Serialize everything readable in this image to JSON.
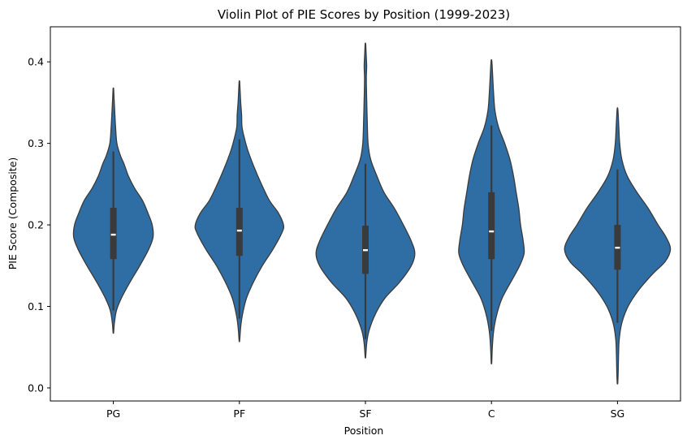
{
  "chart_data": {
    "type": "violin",
    "title": "Violin Plot of PIE Scores by Position (1999-2023)",
    "xlabel": "Position",
    "ylabel": "PIE Score (Composite)",
    "ylim": [
      -0.016,
      0.443
    ],
    "yticks": [
      0.0,
      0.1,
      0.2,
      0.3,
      0.4
    ],
    "ytick_labels": [
      "0.0",
      "0.1",
      "0.2",
      "0.3",
      "0.4"
    ],
    "categories": [
      "PG",
      "PF",
      "SF",
      "C",
      "SG"
    ],
    "color": "#2f6ea4",
    "series": [
      {
        "category": "PG",
        "min": 0.068,
        "max": 0.367,
        "q1": 0.158,
        "median": 0.188,
        "q3": 0.221,
        "whisker_low": 0.095,
        "whisker_high": 0.29,
        "density": [
          [
            0.068,
            0.3
          ],
          [
            0.08,
            1.2
          ],
          [
            0.095,
            3.5
          ],
          [
            0.11,
            9
          ],
          [
            0.13,
            19
          ],
          [
            0.15,
            30
          ],
          [
            0.17,
            40
          ],
          [
            0.185,
            45
          ],
          [
            0.2,
            44
          ],
          [
            0.215,
            39
          ],
          [
            0.23,
            33
          ],
          [
            0.245,
            24
          ],
          [
            0.26,
            17
          ],
          [
            0.275,
            12
          ],
          [
            0.285,
            8
          ],
          [
            0.3,
            4
          ],
          [
            0.32,
            2.5
          ],
          [
            0.34,
            1.5
          ],
          [
            0.355,
            0.8
          ],
          [
            0.367,
            0.3
          ]
        ]
      },
      {
        "category": "PF",
        "min": 0.058,
        "max": 0.376,
        "q1": 0.162,
        "median": 0.193,
        "q3": 0.221,
        "whisker_low": 0.085,
        "whisker_high": 0.305,
        "density": [
          [
            0.058,
            0.3
          ],
          [
            0.075,
            1.5
          ],
          [
            0.09,
            3.5
          ],
          [
            0.11,
            8
          ],
          [
            0.13,
            16
          ],
          [
            0.15,
            26
          ],
          [
            0.17,
            38
          ],
          [
            0.19,
            48
          ],
          [
            0.2,
            50
          ],
          [
            0.215,
            44
          ],
          [
            0.23,
            34
          ],
          [
            0.25,
            25
          ],
          [
            0.27,
            17
          ],
          [
            0.29,
            10
          ],
          [
            0.305,
            6
          ],
          [
            0.32,
            3
          ],
          [
            0.335,
            2.5
          ],
          [
            0.35,
            1.5
          ],
          [
            0.365,
            0.8
          ],
          [
            0.376,
            0.3
          ]
        ]
      },
      {
        "category": "SF",
        "min": 0.038,
        "max": 0.422,
        "q1": 0.14,
        "median": 0.169,
        "q3": 0.199,
        "whisker_low": 0.06,
        "whisker_high": 0.275,
        "density": [
          [
            0.038,
            0.3
          ],
          [
            0.055,
            1.5
          ],
          [
            0.07,
            4
          ],
          [
            0.09,
            11
          ],
          [
            0.11,
            22
          ],
          [
            0.13,
            39
          ],
          [
            0.15,
            52
          ],
          [
            0.165,
            56
          ],
          [
            0.18,
            52
          ],
          [
            0.2,
            43
          ],
          [
            0.22,
            33
          ],
          [
            0.24,
            21
          ],
          [
            0.26,
            13
          ],
          [
            0.28,
            6
          ],
          [
            0.3,
            3
          ],
          [
            0.33,
            2
          ],
          [
            0.36,
            1.3
          ],
          [
            0.38,
            1
          ],
          [
            0.395,
            1.4
          ],
          [
            0.41,
            0.8
          ],
          [
            0.422,
            0.3
          ]
        ]
      },
      {
        "category": "C",
        "min": 0.031,
        "max": 0.402,
        "q1": 0.158,
        "median": 0.192,
        "q3": 0.24,
        "whisker_low": 0.07,
        "whisker_high": 0.322,
        "density": [
          [
            0.031,
            0.3
          ],
          [
            0.05,
            1
          ],
          [
            0.07,
            2.5
          ],
          [
            0.09,
            6
          ],
          [
            0.11,
            12
          ],
          [
            0.13,
            22
          ],
          [
            0.15,
            32
          ],
          [
            0.165,
            37
          ],
          [
            0.18,
            36
          ],
          [
            0.2,
            33
          ],
          [
            0.22,
            31
          ],
          [
            0.24,
            28
          ],
          [
            0.26,
            25
          ],
          [
            0.28,
            21
          ],
          [
            0.3,
            15
          ],
          [
            0.32,
            8
          ],
          [
            0.34,
            4
          ],
          [
            0.36,
            2.5
          ],
          [
            0.38,
            1.5
          ],
          [
            0.395,
            0.8
          ],
          [
            0.402,
            0.3
          ]
        ]
      },
      {
        "category": "SG",
        "min": 0.006,
        "max": 0.343,
        "q1": 0.145,
        "median": 0.172,
        "q3": 0.2,
        "whisker_low": 0.08,
        "whisker_high": 0.268,
        "density": [
          [
            0.006,
            0.3
          ],
          [
            0.02,
            0.8
          ],
          [
            0.04,
            1.2
          ],
          [
            0.06,
            2
          ],
          [
            0.08,
            5
          ],
          [
            0.1,
            12
          ],
          [
            0.12,
            24
          ],
          [
            0.14,
            40
          ],
          [
            0.155,
            54
          ],
          [
            0.17,
            60
          ],
          [
            0.185,
            55
          ],
          [
            0.2,
            46
          ],
          [
            0.22,
            35
          ],
          [
            0.24,
            22
          ],
          [
            0.26,
            11
          ],
          [
            0.28,
            5
          ],
          [
            0.3,
            2.5
          ],
          [
            0.32,
            1.5
          ],
          [
            0.335,
            0.8
          ],
          [
            0.343,
            0.3
          ]
        ]
      }
    ]
  }
}
